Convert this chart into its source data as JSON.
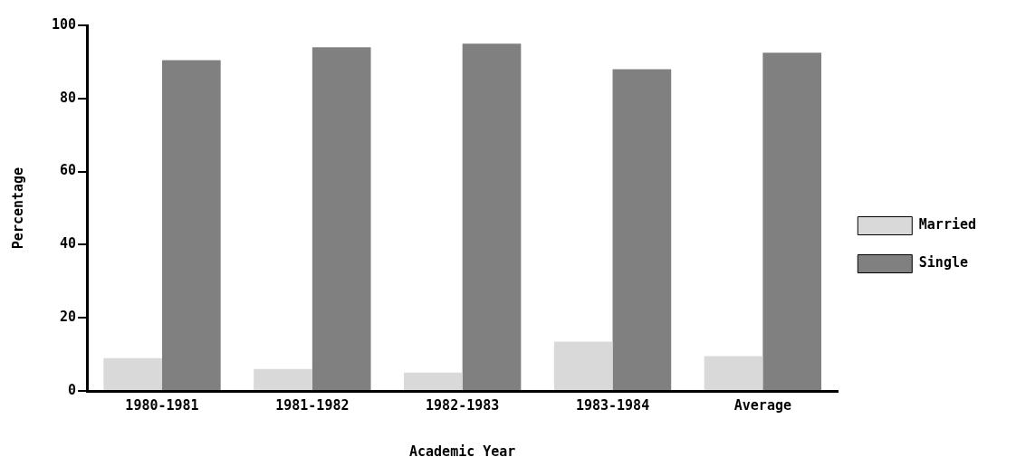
{
  "chart_data": {
    "type": "bar",
    "xlabel": "Academic Year",
    "ylabel": "Percentage",
    "categories": [
      "1980-1981",
      "1981-1982",
      "1982-1983",
      "1983-1984",
      "Average"
    ],
    "series": [
      {
        "name": "Married",
        "color": "#d9d9d9",
        "values": [
          9,
          6,
          5,
          13.5,
          9.5
        ]
      },
      {
        "name": "Single",
        "color": "#808080",
        "values": [
          90.5,
          94,
          95,
          88,
          92.5
        ]
      }
    ],
    "ylim": [
      0,
      100
    ],
    "yticks": [
      0,
      20,
      40,
      60,
      80,
      100
    ],
    "grid": false,
    "legend": "right"
  }
}
